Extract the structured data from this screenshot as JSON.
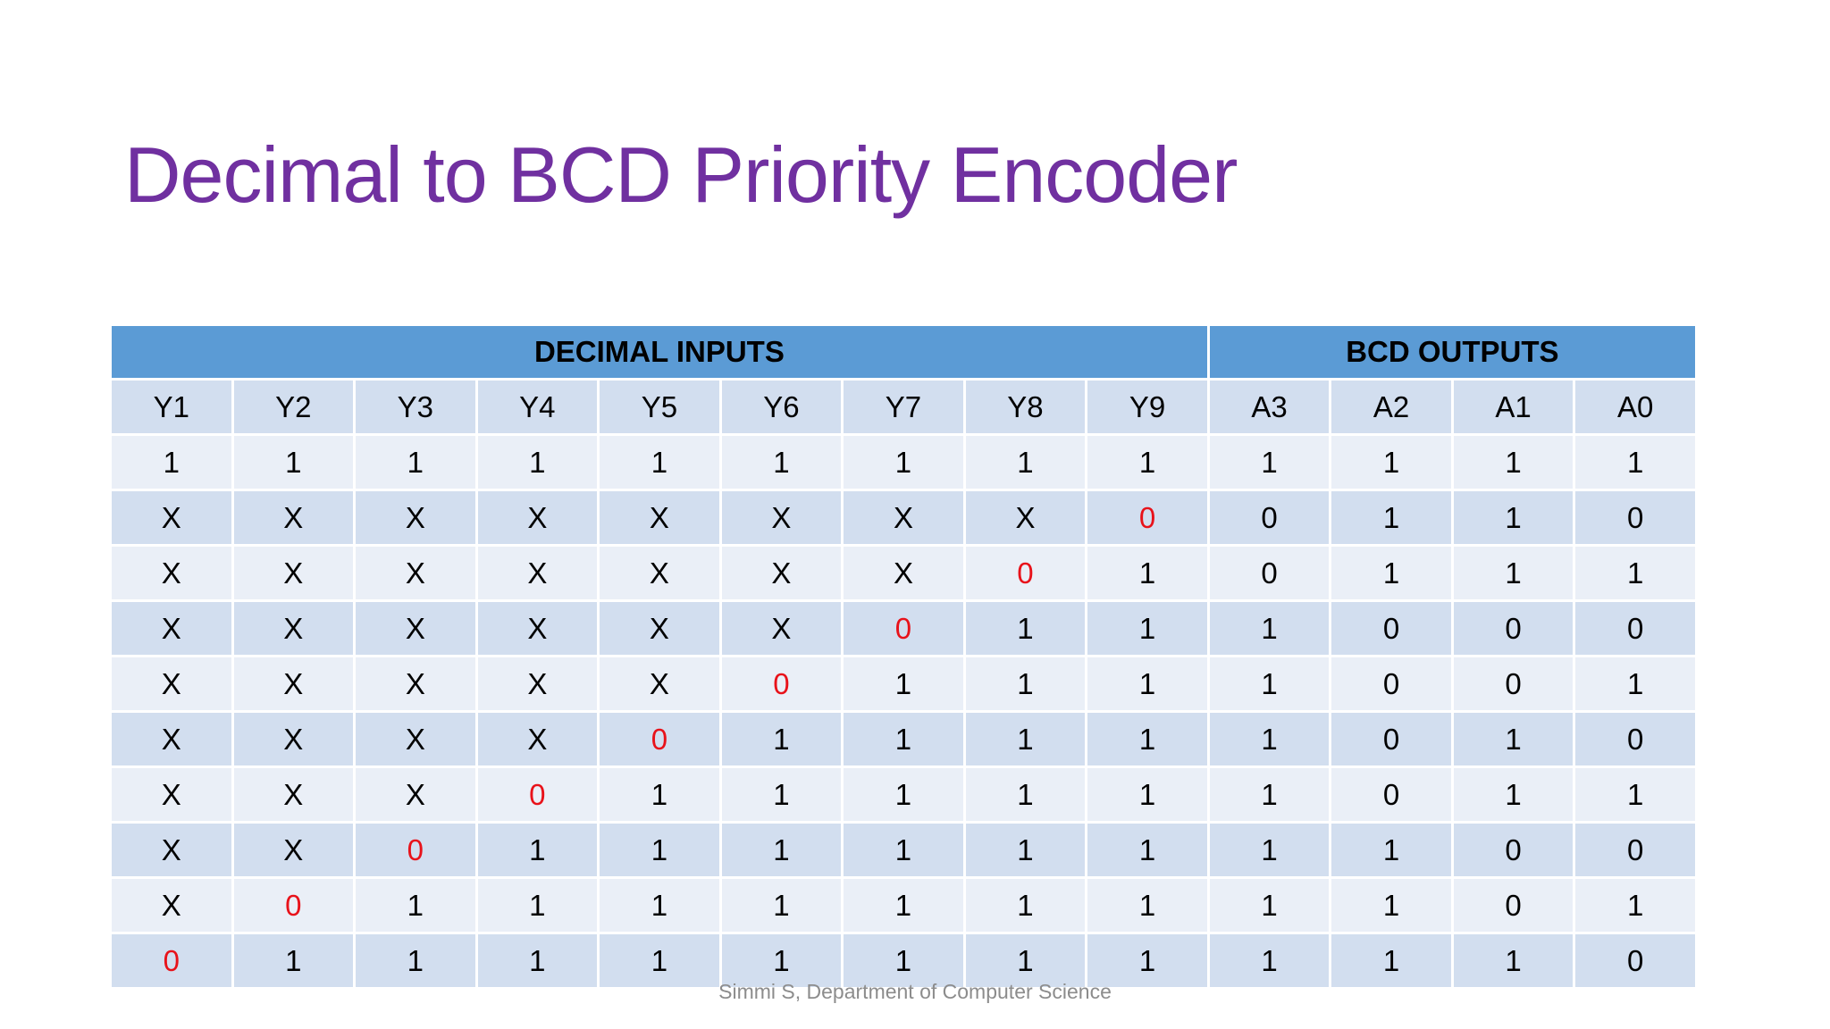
{
  "title": "Decimal to BCD Priority Encoder",
  "table": {
    "groups": [
      {
        "label": "DECIMAL INPUTS",
        "span": 9
      },
      {
        "label": "BCD OUTPUTS",
        "span": 4
      }
    ],
    "columns": [
      "Y1",
      "Y2",
      "Y3",
      "Y4",
      "Y5",
      "Y6",
      "Y7",
      "Y8",
      "Y9",
      "A3",
      "A2",
      "A1",
      "A0"
    ],
    "rows": [
      [
        "1",
        "1",
        "1",
        "1",
        "1",
        "1",
        "1",
        "1",
        "1",
        "1",
        "1",
        "1",
        "1"
      ],
      [
        "X",
        "X",
        "X",
        "X",
        "X",
        "X",
        "X",
        "X",
        "0",
        "0",
        "1",
        "1",
        "0"
      ],
      [
        "X",
        "X",
        "X",
        "X",
        "X",
        "X",
        "X",
        "0",
        "1",
        "0",
        "1",
        "1",
        "1"
      ],
      [
        "X",
        "X",
        "X",
        "X",
        "X",
        "X",
        "0",
        "1",
        "1",
        "1",
        "0",
        "0",
        "0"
      ],
      [
        "X",
        "X",
        "X",
        "X",
        "X",
        "0",
        "1",
        "1",
        "1",
        "1",
        "0",
        "0",
        "1"
      ],
      [
        "X",
        "X",
        "X",
        "X",
        "0",
        "1",
        "1",
        "1",
        "1",
        "1",
        "0",
        "1",
        "0"
      ],
      [
        "X",
        "X",
        "X",
        "0",
        "1",
        "1",
        "1",
        "1",
        "1",
        "1",
        "0",
        "1",
        "1"
      ],
      [
        "X",
        "X",
        "0",
        "1",
        "1",
        "1",
        "1",
        "1",
        "1",
        "1",
        "1",
        "0",
        "0"
      ],
      [
        "X",
        "0",
        "1",
        "1",
        "1",
        "1",
        "1",
        "1",
        "1",
        "1",
        "1",
        "0",
        "1"
      ],
      [
        "0",
        "1",
        "1",
        "1",
        "1",
        "1",
        "1",
        "1",
        "1",
        "1",
        "1",
        "1",
        "0"
      ]
    ],
    "highlight_cells": [
      [
        1,
        8
      ],
      [
        2,
        7
      ],
      [
        3,
        6
      ],
      [
        4,
        5
      ],
      [
        5,
        4
      ],
      [
        6,
        3
      ],
      [
        7,
        2
      ],
      [
        8,
        1
      ],
      [
        9,
        0
      ]
    ],
    "colors": {
      "header": "#5b9bd5",
      "row_dark": "#d2deef",
      "row_light": "#eaeff7",
      "highlight_text": "#e8121a",
      "title": "#7030a0"
    }
  },
  "footer": "Simmi S, Department of Computer Science"
}
